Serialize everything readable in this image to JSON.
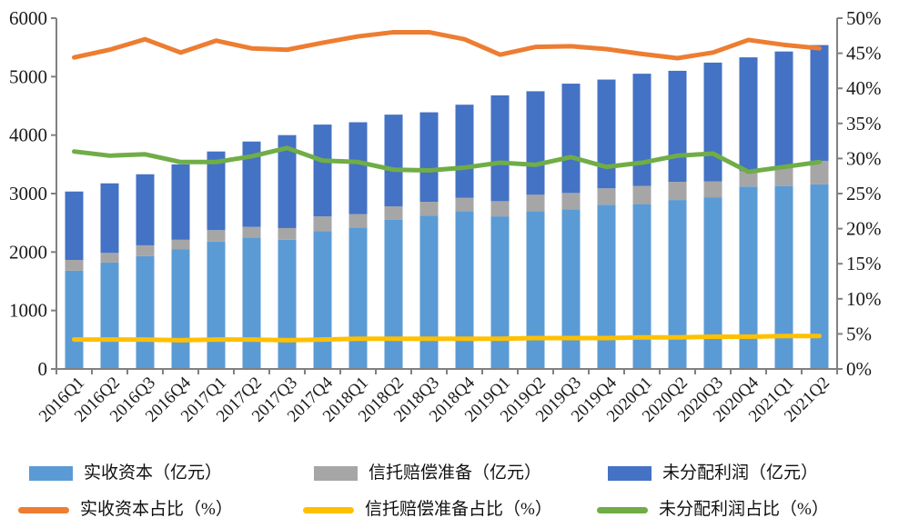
{
  "chart_data": {
    "type": "bar",
    "subtype": "stacked-bar-with-lines-combo",
    "title": "",
    "xlabel": "",
    "ylabel_left": "",
    "ylabel_right": "",
    "grid": false,
    "legend_position": "bottom",
    "categories": [
      "2016Q1",
      "2016Q2",
      "2016Q3",
      "2016Q4",
      "2017Q1",
      "2017Q2",
      "2017Q3",
      "2017Q4",
      "2018Q1",
      "2018Q2",
      "2018Q3",
      "2018Q4",
      "2019Q1",
      "2019Q2",
      "2019Q3",
      "2019Q4",
      "2020Q1",
      "2020Q2",
      "2020Q3",
      "2020Q4",
      "2021Q1",
      "2021Q2"
    ],
    "bar_series": [
      {
        "name": "实收资本（亿元）",
        "color": "#5B9BD5",
        "axis": "left",
        "values": [
          1680,
          1820,
          1930,
          2050,
          2180,
          2250,
          2210,
          2360,
          2420,
          2550,
          2620,
          2700,
          2610,
          2700,
          2730,
          2810,
          2820,
          2890,
          2930,
          3120,
          3130,
          3160
        ]
      },
      {
        "name": "信托赔偿准备（亿元）",
        "color": "#A6A6A6",
        "axis": "left",
        "values": [
          185,
          165,
          185,
          160,
          195,
          180,
          200,
          250,
          230,
          230,
          240,
          230,
          260,
          280,
          280,
          280,
          310,
          310,
          280,
          265,
          340,
          400
        ]
      },
      {
        "name": "未分配利润（亿元）",
        "color": "#4472C4",
        "axis": "left",
        "values": [
          1170,
          1190,
          1215,
          1290,
          1345,
          1460,
          1590,
          1570,
          1570,
          1570,
          1530,
          1590,
          1810,
          1770,
          1870,
          1860,
          1920,
          1900,
          2030,
          1945,
          1960,
          1980
        ]
      }
    ],
    "line_series": [
      {
        "name": "实收资本占比（%）",
        "color": "#ED7D31",
        "axis": "right",
        "values": [
          44.4,
          45.5,
          47.0,
          45.1,
          46.8,
          45.7,
          45.5,
          46.5,
          47.4,
          48.0,
          48.0,
          47.0,
          44.8,
          45.9,
          46.0,
          45.6,
          44.9,
          44.3,
          45.1,
          46.9,
          46.2,
          45.7
        ]
      },
      {
        "name": "信托赔偿准备占比（%）",
        "color": "#FFC000",
        "axis": "right",
        "values": [
          4.2,
          4.2,
          4.2,
          4.1,
          4.2,
          4.2,
          4.1,
          4.2,
          4.3,
          4.3,
          4.3,
          4.3,
          4.3,
          4.4,
          4.4,
          4.4,
          4.5,
          4.5,
          4.6,
          4.6,
          4.7,
          4.7
        ]
      },
      {
        "name": "未分配利润占比（%）",
        "color": "#70AD47",
        "axis": "right",
        "values": [
          31.0,
          30.4,
          30.6,
          29.5,
          29.5,
          30.3,
          31.5,
          29.7,
          29.5,
          28.4,
          28.3,
          28.7,
          29.4,
          29.1,
          30.2,
          28.8,
          29.4,
          30.4,
          30.7,
          28.1,
          28.8,
          29.5
        ]
      }
    ],
    "left_axis": {
      "min": 0,
      "max": 6000,
      "step": 1000,
      "tick_labels": [
        "0",
        "1000",
        "2000",
        "3000",
        "4000",
        "5000",
        "6000"
      ]
    },
    "right_axis": {
      "min": 0,
      "max": 50,
      "step": 5,
      "tick_labels": [
        "0%",
        "5%",
        "10%",
        "15%",
        "20%",
        "25%",
        "30%",
        "35%",
        "40%",
        "45%",
        "50%"
      ]
    },
    "axis_color": "#808080",
    "text_color": "#1a1a1a"
  }
}
